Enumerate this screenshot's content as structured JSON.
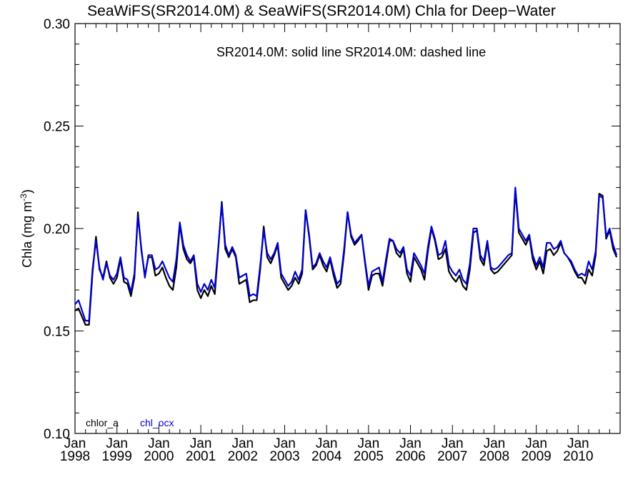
{
  "chart_data": {
    "type": "line",
    "title": "SeaWiFS(SR2014.0M) & SeaWiFS(SR2014.0M)  Chla for Deep−Water",
    "subtitle": "SR2014.0M: solid line   SR2014.0M: dashed line",
    "ylabel": "Chla (mg m",
    "ylabel_sup": "-3",
    "ylabel_close": ")",
    "xlabel": "",
    "ylim": [
      0.1,
      0.3
    ],
    "yticks": [
      0.1,
      0.15,
      0.2,
      0.25,
      0.3
    ],
    "yticklabels": [
      "0.10",
      "0.15",
      "0.20",
      "0.25",
      "0.30"
    ],
    "xlim": [
      "1998-01",
      "2011-01"
    ],
    "xticks": [
      {
        "month": "Jan",
        "year": "1998",
        "date": "1998-01"
      },
      {
        "month": "Jan",
        "year": "1999",
        "date": "1999-01"
      },
      {
        "month": "Jan",
        "year": "2000",
        "date": "2000-01"
      },
      {
        "month": "Jan",
        "year": "2001",
        "date": "2001-01"
      },
      {
        "month": "Jan",
        "year": "2002",
        "date": "2002-01"
      },
      {
        "month": "Jan",
        "year": "2003",
        "date": "2003-01"
      },
      {
        "month": "Jan",
        "year": "2004",
        "date": "2004-01"
      },
      {
        "month": "Jan",
        "year": "2005",
        "date": "2005-01"
      },
      {
        "month": "Jan",
        "year": "2006",
        "date": "2006-01"
      },
      {
        "month": "Jan",
        "year": "2007",
        "date": "2007-01"
      },
      {
        "month": "Jan",
        "year": "2008",
        "date": "2008-01"
      },
      {
        "month": "Jan",
        "year": "2009",
        "date": "2009-01"
      },
      {
        "month": "Jan",
        "year": "2010",
        "date": "2010-01"
      }
    ],
    "grid": false,
    "legend_position": "bottom-left",
    "x": [
      "1998-01",
      "1998-02",
      "1998-03",
      "1998-04",
      "1998-05",
      "1998-06",
      "1998-07",
      "1998-08",
      "1998-09",
      "1998-10",
      "1998-11",
      "1998-12",
      "1999-01",
      "1999-02",
      "1999-03",
      "1999-04",
      "1999-05",
      "1999-06",
      "1999-07",
      "1999-08",
      "1999-09",
      "1999-10",
      "1999-11",
      "1999-12",
      "2000-01",
      "2000-02",
      "2000-03",
      "2000-04",
      "2000-05",
      "2000-06",
      "2000-07",
      "2000-08",
      "2000-09",
      "2000-10",
      "2000-11",
      "2000-12",
      "2001-01",
      "2001-02",
      "2001-03",
      "2001-04",
      "2001-05",
      "2001-06",
      "2001-07",
      "2001-08",
      "2001-09",
      "2001-10",
      "2001-11",
      "2001-12",
      "2002-01",
      "2002-02",
      "2002-03",
      "2002-04",
      "2002-05",
      "2002-06",
      "2002-07",
      "2002-08",
      "2002-09",
      "2002-10",
      "2002-11",
      "2002-12",
      "2003-01",
      "2003-02",
      "2003-03",
      "2003-04",
      "2003-05",
      "2003-06",
      "2003-07",
      "2003-08",
      "2003-09",
      "2003-10",
      "2003-11",
      "2003-12",
      "2004-01",
      "2004-02",
      "2004-03",
      "2004-04",
      "2004-05",
      "2004-06",
      "2004-07",
      "2004-08",
      "2004-09",
      "2004-10",
      "2004-11",
      "2004-12",
      "2005-01",
      "2005-02",
      "2005-03",
      "2005-04",
      "2005-05",
      "2005-06",
      "2005-07",
      "2005-08",
      "2005-09",
      "2005-10",
      "2005-11",
      "2005-12",
      "2006-01",
      "2006-02",
      "2006-03",
      "2006-04",
      "2006-05",
      "2006-06",
      "2006-07",
      "2006-08",
      "2006-09",
      "2006-10",
      "2006-11",
      "2006-12",
      "2007-01",
      "2007-02",
      "2007-03",
      "2007-04",
      "2007-05",
      "2007-06",
      "2007-07",
      "2007-08",
      "2007-09",
      "2007-10",
      "2007-11",
      "2007-12",
      "2008-01",
      "2008-02",
      "2008-03",
      "2008-04",
      "2008-05",
      "2008-06",
      "2008-07",
      "2008-08",
      "2008-09",
      "2008-10",
      "2008-11",
      "2008-12",
      "2009-01",
      "2009-02",
      "2009-03",
      "2009-04",
      "2009-05",
      "2009-06",
      "2009-07",
      "2009-08",
      "2009-09",
      "2009-10",
      "2009-11",
      "2009-12",
      "2010-01",
      "2010-02",
      "2010-03",
      "2010-04",
      "2010-05",
      "2010-06",
      "2010-07",
      "2010-08",
      "2010-09",
      "2010-10",
      "2010-11",
      "2010-12"
    ],
    "series": [
      {
        "name": "chlor_a",
        "color": "#000000",
        "values": [
          0.16,
          0.161,
          0.157,
          0.153,
          0.153,
          0.178,
          0.196,
          0.18,
          0.176,
          0.184,
          0.176,
          0.173,
          0.176,
          0.185,
          0.174,
          0.173,
          0.167,
          0.176,
          0.208,
          0.189,
          0.177,
          0.186,
          0.186,
          0.177,
          0.178,
          0.181,
          0.176,
          0.172,
          0.17,
          0.181,
          0.202,
          0.19,
          0.185,
          0.183,
          0.186,
          0.17,
          0.166,
          0.17,
          0.167,
          0.172,
          0.168,
          0.19,
          0.213,
          0.19,
          0.186,
          0.19,
          0.186,
          0.173,
          0.174,
          0.175,
          0.164,
          0.165,
          0.165,
          0.18,
          0.201,
          0.186,
          0.183,
          0.187,
          0.192,
          0.176,
          0.173,
          0.17,
          0.172,
          0.176,
          0.173,
          0.178,
          0.209,
          0.196,
          0.18,
          0.182,
          0.187,
          0.182,
          0.179,
          0.185,
          0.177,
          0.171,
          0.173,
          0.188,
          0.208,
          0.196,
          0.192,
          0.194,
          0.197,
          0.183,
          0.17,
          0.177,
          0.178,
          0.178,
          0.172,
          0.183,
          0.194,
          0.194,
          0.188,
          0.186,
          0.19,
          0.178,
          0.174,
          0.186,
          0.183,
          0.18,
          0.175,
          0.189,
          0.2,
          0.194,
          0.185,
          0.186,
          0.19,
          0.179,
          0.176,
          0.174,
          0.177,
          0.172,
          0.17,
          0.18,
          0.198,
          0.199,
          0.185,
          0.182,
          0.193,
          0.18,
          0.178,
          0.179,
          0.181,
          0.183,
          0.185,
          0.187,
          0.219,
          0.198,
          0.195,
          0.192,
          0.196,
          0.185,
          0.18,
          0.184,
          0.178,
          0.189,
          0.19,
          0.187,
          0.189,
          0.193,
          0.188,
          0.186,
          0.183,
          0.179,
          0.176,
          0.176,
          0.173,
          0.18,
          0.177,
          0.187,
          0.217,
          0.216,
          0.195,
          0.199,
          0.19,
          0.186
        ]
      },
      {
        "name": "chl_ocx",
        "color": "#0000cc",
        "values": [
          0.163,
          0.165,
          0.16,
          0.155,
          0.155,
          0.18,
          0.194,
          0.181,
          0.175,
          0.183,
          0.177,
          0.175,
          0.178,
          0.186,
          0.176,
          0.175,
          0.169,
          0.178,
          0.206,
          0.19,
          0.176,
          0.187,
          0.187,
          0.18,
          0.181,
          0.184,
          0.18,
          0.176,
          0.174,
          0.185,
          0.203,
          0.192,
          0.187,
          0.184,
          0.187,
          0.173,
          0.169,
          0.173,
          0.17,
          0.175,
          0.171,
          0.191,
          0.212,
          0.192,
          0.187,
          0.191,
          0.187,
          0.176,
          0.177,
          0.178,
          0.167,
          0.168,
          0.167,
          0.182,
          0.199,
          0.188,
          0.185,
          0.188,
          0.193,
          0.178,
          0.175,
          0.172,
          0.174,
          0.179,
          0.175,
          0.18,
          0.209,
          0.197,
          0.181,
          0.183,
          0.188,
          0.184,
          0.181,
          0.186,
          0.179,
          0.173,
          0.175,
          0.19,
          0.208,
          0.197,
          0.193,
          0.195,
          0.197,
          0.184,
          0.172,
          0.179,
          0.18,
          0.181,
          0.174,
          0.185,
          0.195,
          0.194,
          0.19,
          0.188,
          0.191,
          0.18,
          0.177,
          0.188,
          0.185,
          0.182,
          0.178,
          0.191,
          0.201,
          0.195,
          0.187,
          0.188,
          0.194,
          0.182,
          0.179,
          0.177,
          0.18,
          0.175,
          0.173,
          0.183,
          0.2,
          0.2,
          0.187,
          0.184,
          0.194,
          0.181,
          0.18,
          0.181,
          0.183,
          0.185,
          0.187,
          0.188,
          0.22,
          0.2,
          0.197,
          0.194,
          0.197,
          0.187,
          0.182,
          0.186,
          0.181,
          0.193,
          0.193,
          0.19,
          0.191,
          0.194,
          0.188,
          0.186,
          0.184,
          0.18,
          0.177,
          0.178,
          0.177,
          0.184,
          0.18,
          0.189,
          0.216,
          0.215,
          0.196,
          0.2,
          0.192,
          0.187
        ]
      }
    ]
  }
}
